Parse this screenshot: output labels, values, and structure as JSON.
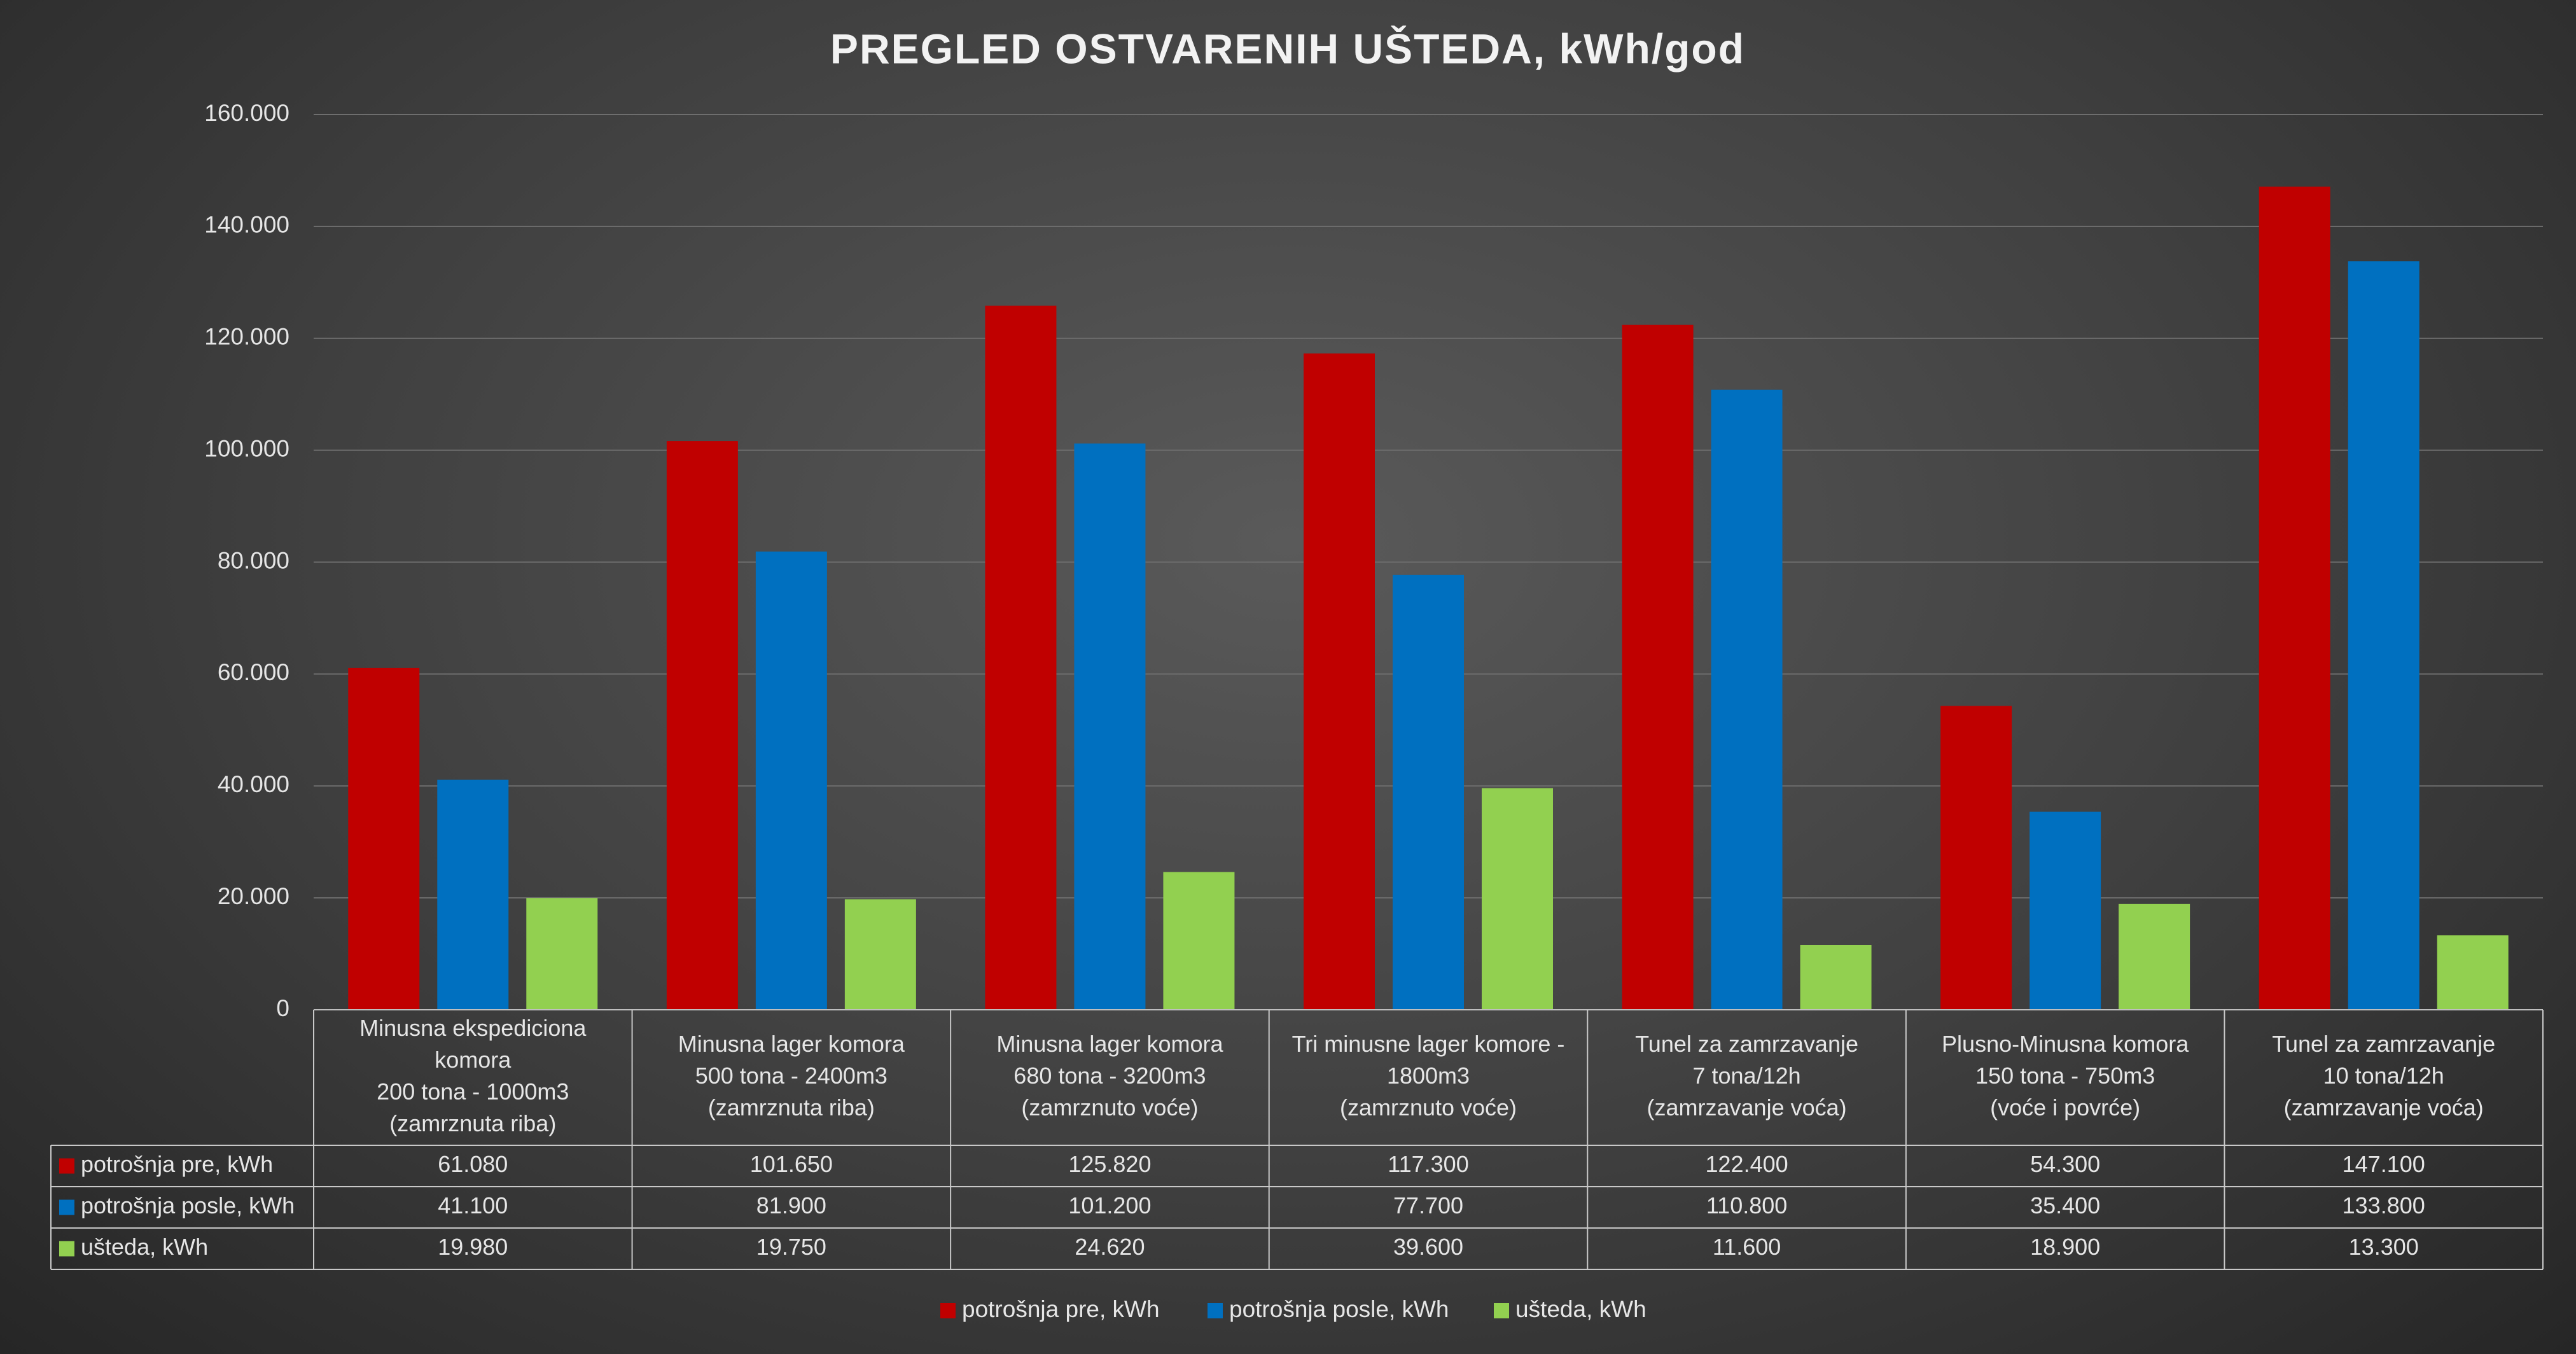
{
  "chart_data": {
    "type": "bar",
    "title": "PREGLED OSTVARENIH UŠTEDA, kWh/god",
    "xlabel": "",
    "ylabel": "",
    "ylim": [
      0,
      160000
    ],
    "yticks": [
      0,
      20000,
      40000,
      60000,
      80000,
      100000,
      120000,
      140000,
      160000
    ],
    "ytick_labels": [
      "0",
      "20.000",
      "40.000",
      "60.000",
      "80.000",
      "100.000",
      "120.000",
      "140.000",
      "160.000"
    ],
    "grid": true,
    "legend_position": "bottom",
    "categories": [
      [
        "Minusna ekspediciona",
        "komora",
        "200 tona - 1000m3",
        "(zamrznuta riba)"
      ],
      [
        "Minusna lager komora",
        "500 tona - 2400m3",
        "(zamrznuta riba)"
      ],
      [
        "Minusna lager komora",
        "680 tona - 3200m3",
        "(zamrznuto voće)"
      ],
      [
        "Tri minusne lager komore -",
        "1800m3",
        "(zamrznuto voće)"
      ],
      [
        "Tunel za zamrzavanje",
        "7 tona/12h",
        "(zamrzavanje voća)"
      ],
      [
        "Plusno-Minusna komora",
        "150 tona - 750m3",
        "(voće i povrće)"
      ],
      [
        "Tunel za zamrzavanje",
        "10 tona/12h",
        "(zamrzavanje voća)"
      ]
    ],
    "series": [
      {
        "name": "potrošnja pre, kWh",
        "color": "#c00000",
        "values": [
          61080,
          101650,
          125820,
          117300,
          122400,
          54300,
          147100
        ],
        "labels": [
          "61.080",
          "101.650",
          "125.820",
          "117.300",
          "122.400",
          "54.300",
          "147.100"
        ]
      },
      {
        "name": "potrošnja posle, kWh",
        "color": "#0070c0",
        "values": [
          41100,
          81900,
          101200,
          77700,
          110800,
          35400,
          133800
        ],
        "labels": [
          "41.100",
          "81.900",
          "101.200",
          "77.700",
          "110.800",
          "35.400",
          "133.800"
        ]
      },
      {
        "name": "ušteda, kWh",
        "color": "#92d050",
        "values": [
          19980,
          19750,
          24620,
          39600,
          11600,
          18900,
          13300
        ],
        "labels": [
          "19.980",
          "19.750",
          "24.620",
          "39.600",
          "11.600",
          "18.900",
          "13.300"
        ]
      }
    ]
  }
}
